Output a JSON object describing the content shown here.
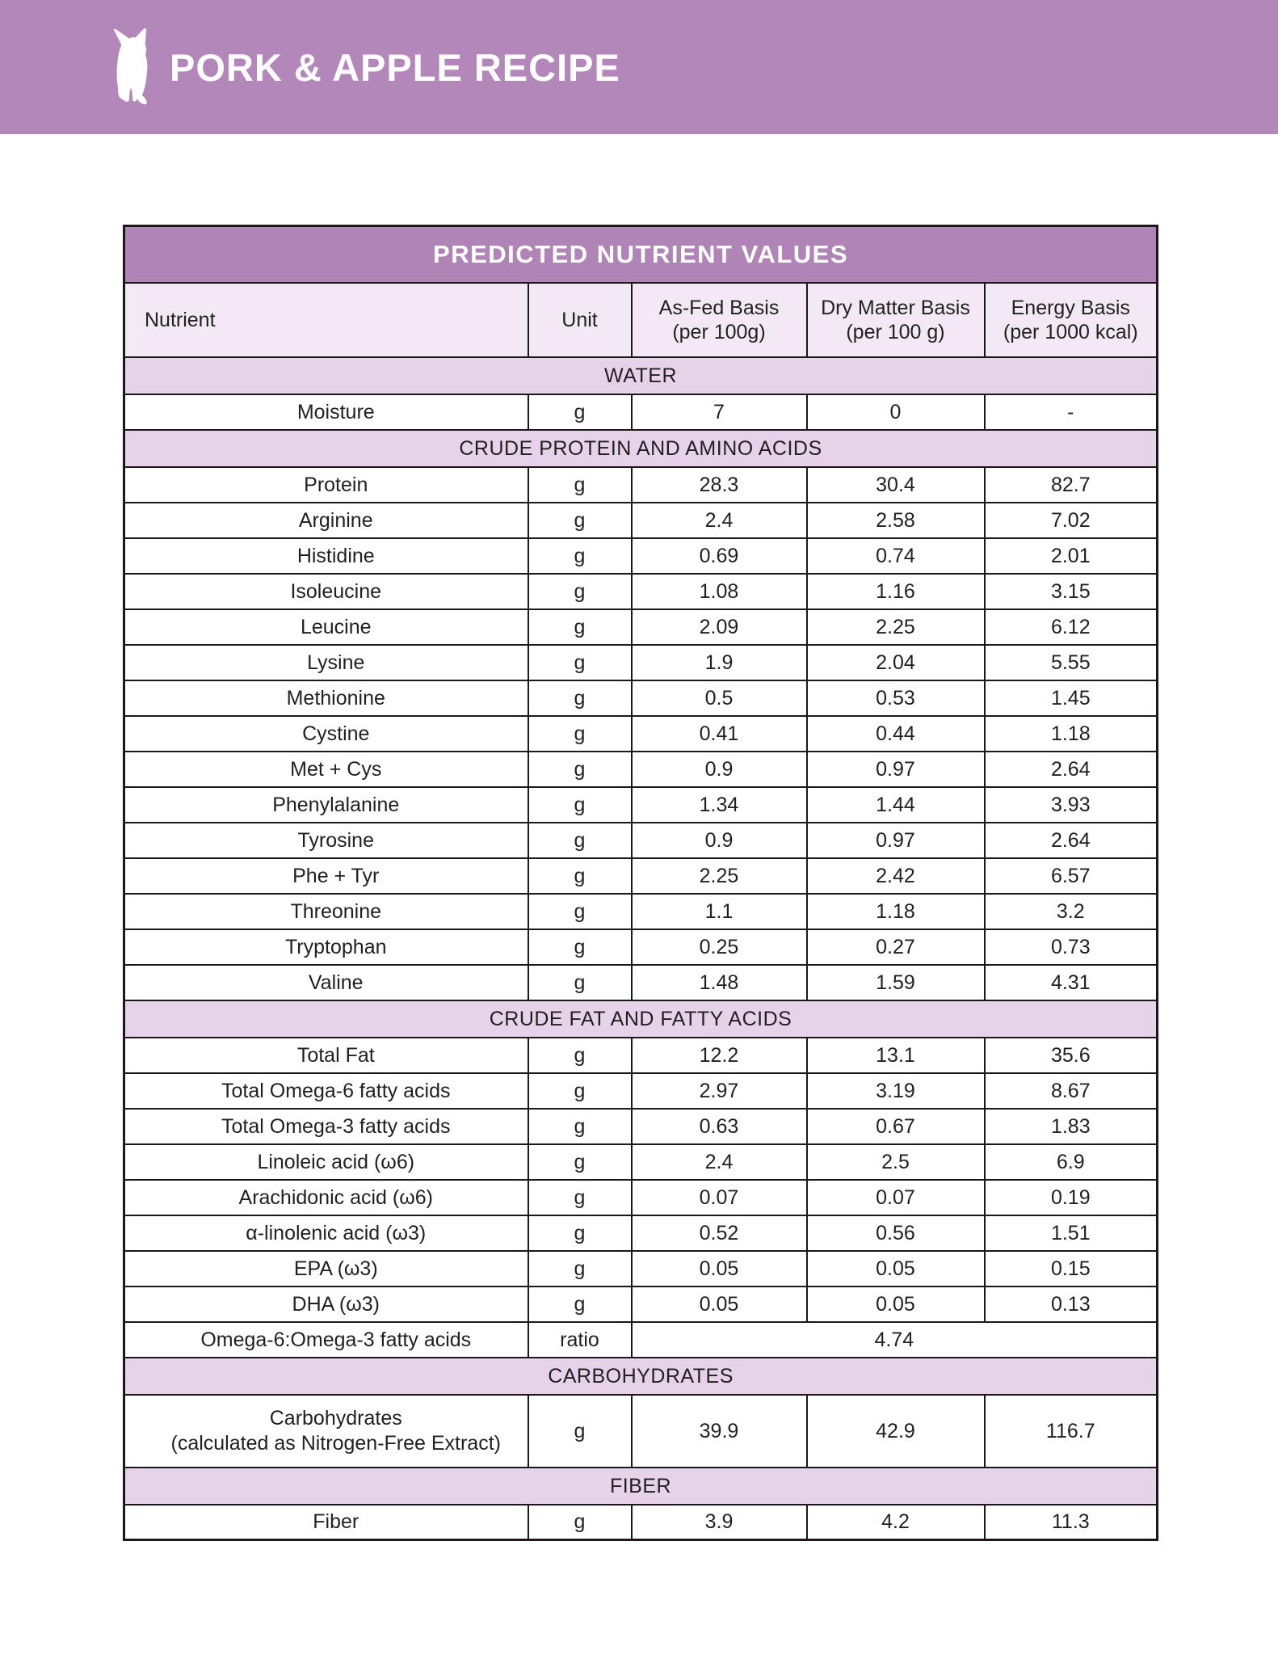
{
  "header": {
    "title": "PORK & APPLE RECIPE",
    "logo": "dog-icon"
  },
  "colors": {
    "banner": "#b487bb",
    "table_title_bg": "#b184b8",
    "header_row_bg": "#f3e9f5",
    "section_bg": "#e6d2e9",
    "border": "#1c181a",
    "text": "#231f20",
    "title_text": "#ffffff"
  },
  "table": {
    "title": "PREDICTED NUTRIENT VALUES",
    "columns": [
      {
        "label": "Nutrient",
        "sub": ""
      },
      {
        "label": "Unit",
        "sub": ""
      },
      {
        "label": "As-Fed Basis",
        "sub": "(per 100g)"
      },
      {
        "label": "Dry Matter Basis",
        "sub": "(per 100 g)"
      },
      {
        "label": "Energy Basis",
        "sub": "(per 1000 kcal)"
      }
    ],
    "sections": [
      {
        "name": "WATER",
        "rows": [
          {
            "nutrient": "Moisture",
            "unit": "g",
            "as_fed": "7",
            "dry_matter": "0",
            "energy": "-"
          }
        ]
      },
      {
        "name": "CRUDE PROTEIN AND AMINO ACIDS",
        "rows": [
          {
            "nutrient": "Protein",
            "unit": "g",
            "as_fed": "28.3",
            "dry_matter": "30.4",
            "energy": "82.7"
          },
          {
            "nutrient": "Arginine",
            "unit": "g",
            "as_fed": "2.4",
            "dry_matter": "2.58",
            "energy": "7.02"
          },
          {
            "nutrient": "Histidine",
            "unit": "g",
            "as_fed": "0.69",
            "dry_matter": "0.74",
            "energy": "2.01"
          },
          {
            "nutrient": "Isoleucine",
            "unit": "g",
            "as_fed": "1.08",
            "dry_matter": "1.16",
            "energy": "3.15"
          },
          {
            "nutrient": "Leucine",
            "unit": "g",
            "as_fed": "2.09",
            "dry_matter": "2.25",
            "energy": "6.12"
          },
          {
            "nutrient": "Lysine",
            "unit": "g",
            "as_fed": "1.9",
            "dry_matter": "2.04",
            "energy": "5.55"
          },
          {
            "nutrient": "Methionine",
            "unit": "g",
            "as_fed": "0.5",
            "dry_matter": "0.53",
            "energy": "1.45"
          },
          {
            "nutrient": "Cystine",
            "unit": "g",
            "as_fed": "0.41",
            "dry_matter": "0.44",
            "energy": "1.18"
          },
          {
            "nutrient": "Met + Cys",
            "unit": "g",
            "as_fed": "0.9",
            "dry_matter": "0.97",
            "energy": "2.64"
          },
          {
            "nutrient": "Phenylalanine",
            "unit": "g",
            "as_fed": "1.34",
            "dry_matter": "1.44",
            "energy": "3.93"
          },
          {
            "nutrient": "Tyrosine",
            "unit": "g",
            "as_fed": "0.9",
            "dry_matter": "0.97",
            "energy": "2.64"
          },
          {
            "nutrient": "Phe + Tyr",
            "unit": "g",
            "as_fed": "2.25",
            "dry_matter": "2.42",
            "energy": "6.57"
          },
          {
            "nutrient": "Threonine",
            "unit": "g",
            "as_fed": "1.1",
            "dry_matter": "1.18",
            "energy": "3.2"
          },
          {
            "nutrient": "Tryptophan",
            "unit": "g",
            "as_fed": "0.25",
            "dry_matter": "0.27",
            "energy": "0.73"
          },
          {
            "nutrient": "Valine",
            "unit": "g",
            "as_fed": "1.48",
            "dry_matter": "1.59",
            "energy": "4.31"
          }
        ]
      },
      {
        "name": "CRUDE FAT AND FATTY ACIDS",
        "rows": [
          {
            "nutrient": "Total Fat",
            "unit": "g",
            "as_fed": "12.2",
            "dry_matter": "13.1",
            "energy": "35.6"
          },
          {
            "nutrient": "Total Omega-6 fatty acids",
            "unit": "g",
            "as_fed": "2.97",
            "dry_matter": "3.19",
            "energy": "8.67"
          },
          {
            "nutrient": "Total Omega-3 fatty acids",
            "unit": "g",
            "as_fed": "0.63",
            "dry_matter": "0.67",
            "energy": "1.83"
          },
          {
            "nutrient": "Linoleic acid (ω6)",
            "unit": "g",
            "as_fed": "2.4",
            "dry_matter": "2.5",
            "energy": "6.9"
          },
          {
            "nutrient": "Arachidonic acid (ω6)",
            "unit": "g",
            "as_fed": "0.07",
            "dry_matter": "0.07",
            "energy": "0.19"
          },
          {
            "nutrient": "α-linolenic acid (ω3)",
            "unit": "g",
            "as_fed": "0.52",
            "dry_matter": "0.56",
            "energy": "1.51"
          },
          {
            "nutrient": "EPA (ω3)",
            "unit": "g",
            "as_fed": "0.05",
            "dry_matter": "0.05",
            "energy": "0.15"
          },
          {
            "nutrient": "DHA (ω3)",
            "unit": "g",
            "as_fed": "0.05",
            "dry_matter": "0.05",
            "energy": "0.13"
          },
          {
            "nutrient": "Omega-6:Omega-3 fatty acids",
            "unit": "ratio",
            "merged_value": "4.74"
          }
        ]
      },
      {
        "name": "CARBOHYDRATES",
        "rows": [
          {
            "nutrient": "Carbohydrates",
            "nutrient_line2": "(calculated as Nitrogen-Free Extract)",
            "unit": "g",
            "as_fed": "39.9",
            "dry_matter": "42.9",
            "energy": "116.7",
            "tall": true
          }
        ]
      },
      {
        "name": "FIBER",
        "rows": [
          {
            "nutrient": "Fiber",
            "unit": "g",
            "as_fed": "3.9",
            "dry_matter": "4.2",
            "energy": "11.3"
          }
        ]
      }
    ]
  }
}
